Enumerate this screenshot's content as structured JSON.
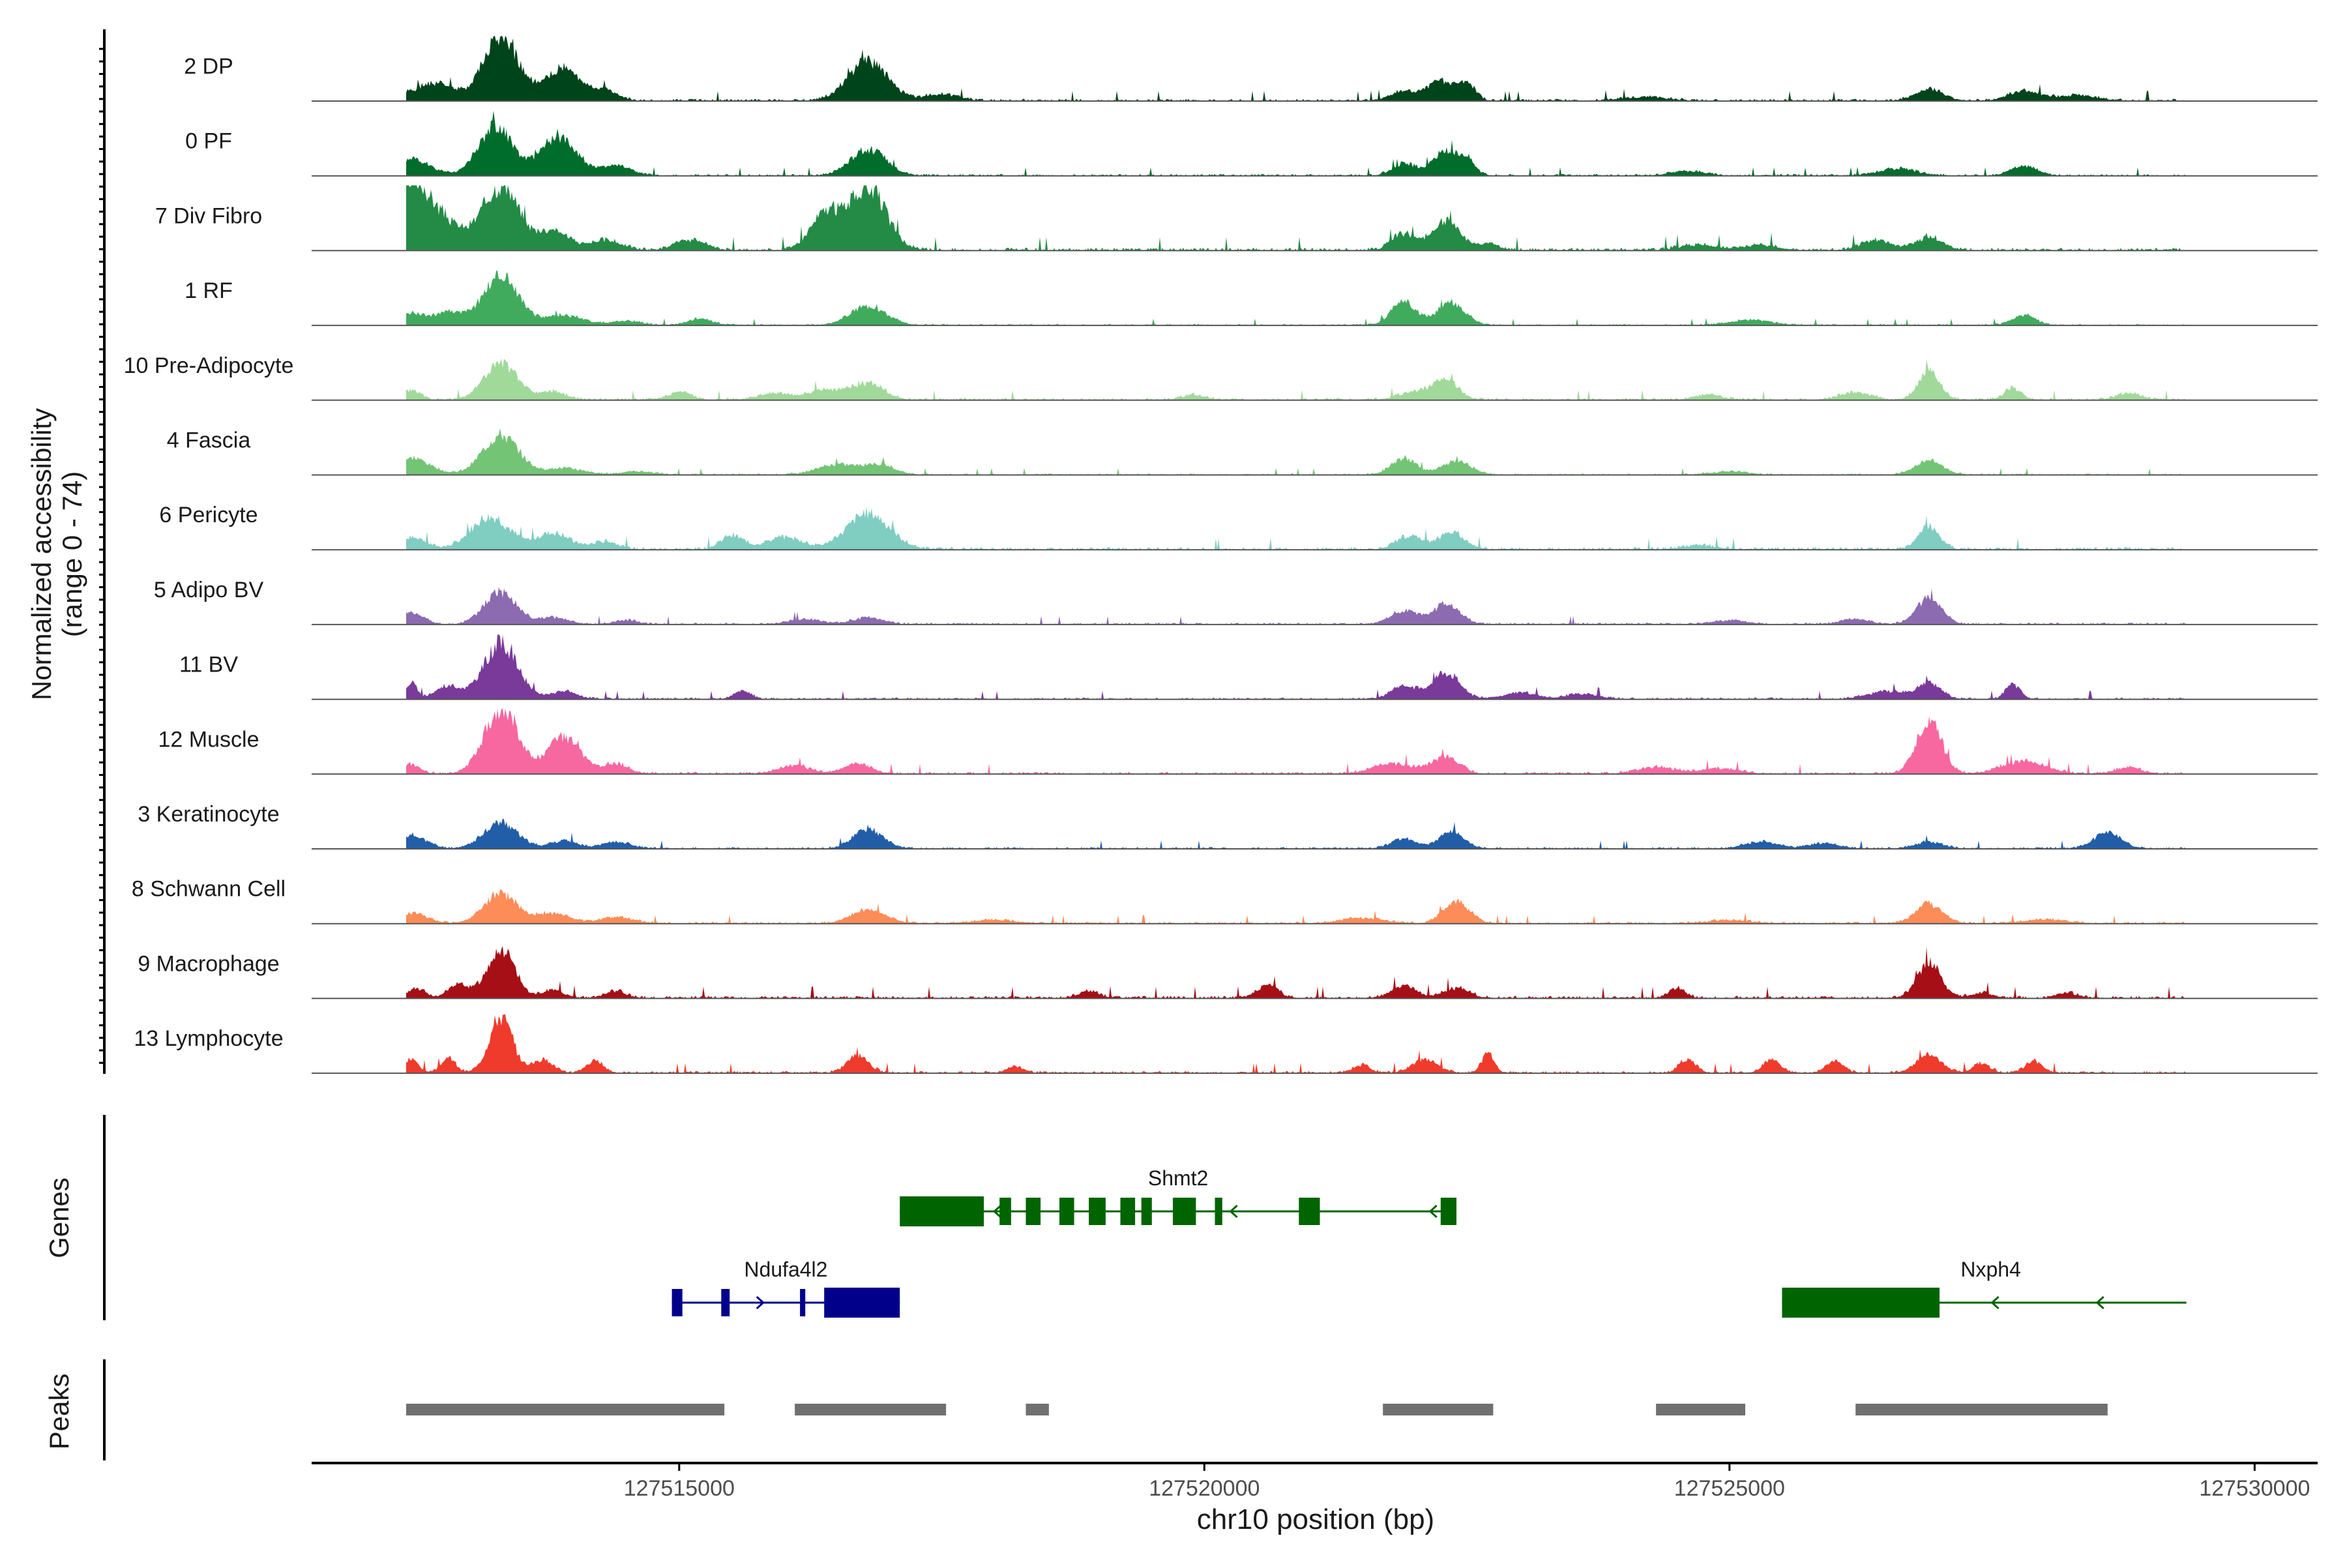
{
  "figure": {
    "ylabel_line1": "Normalized accessibility",
    "ylabel_line2": "(range 0 - 74)",
    "genes_label": "Genes",
    "peaks_label": "Peaks",
    "xlabel": "chr10 position (bp)"
  },
  "chart_data": {
    "type": "area",
    "xlabel": "chr10 position (bp)",
    "ylabel": "Normalized accessibility (range 0 - 74)",
    "xlim": [
      127511500,
      127530600
    ],
    "ylim": [
      0,
      74
    ],
    "xticks": [
      127515000,
      127520000,
      127525000,
      127530000
    ],
    "xtick_labels": [
      "127515000",
      "127520000",
      "127525000",
      "127530000"
    ],
    "data_start": 127512400,
    "data_end": 127529350,
    "tracks": [
      {
        "name": "2 DP",
        "color": "#00441b",
        "peaks": [
          [
            127512400,
            250,
            0.1
          ],
          [
            127512700,
            150,
            0.22
          ],
          [
            127513300,
            170,
            1.0
          ],
          [
            127513900,
            160,
            0.5
          ],
          [
            127514300,
            120,
            0.15
          ],
          [
            127516800,
            190,
            0.6
          ],
          [
            127517500,
            150,
            0.1
          ],
          [
            127521900,
            120,
            0.15
          ],
          [
            127522250,
            130,
            0.3
          ],
          [
            127522500,
            80,
            0.25
          ],
          [
            127524200,
            200,
            0.06
          ],
          [
            127526900,
            130,
            0.18
          ],
          [
            127527800,
            150,
            0.14
          ],
          [
            127528300,
            200,
            0.08
          ]
        ],
        "noise": 0.06
      },
      {
        "name": "0 PF",
        "color": "#006d2c",
        "peaks": [
          [
            127512450,
            180,
            0.25
          ],
          [
            127513250,
            160,
            0.75
          ],
          [
            127513850,
            170,
            0.6
          ],
          [
            127514400,
            140,
            0.15
          ],
          [
            127516800,
            170,
            0.4
          ],
          [
            127521900,
            110,
            0.18
          ],
          [
            127522300,
            130,
            0.35
          ],
          [
            127522500,
            80,
            0.2
          ],
          [
            127524600,
            160,
            0.07
          ],
          [
            127526600,
            180,
            0.1
          ],
          [
            127527800,
            120,
            0.15
          ]
        ],
        "noise": 0.05
      },
      {
        "name": "7 Div Fibro",
        "color": "#238b45",
        "peaks": [
          [
            127512450,
            140,
            0.8
          ],
          [
            127512700,
            200,
            0.5
          ],
          [
            127513300,
            170,
            1.0
          ],
          [
            127513800,
            150,
            0.3
          ],
          [
            127514300,
            150,
            0.15
          ],
          [
            127515100,
            140,
            0.15
          ],
          [
            127516400,
            150,
            0.55
          ],
          [
            127516800,
            170,
            0.95
          ],
          [
            127521900,
            110,
            0.25
          ],
          [
            127522300,
            130,
            0.45
          ],
          [
            127522700,
            100,
            0.1
          ],
          [
            127524700,
            180,
            0.08
          ],
          [
            127525300,
            150,
            0.08
          ],
          [
            127526400,
            140,
            0.15
          ],
          [
            127526900,
            130,
            0.2
          ]
        ],
        "noise": 0.08
      },
      {
        "name": "1 RF",
        "color": "#41ab5d",
        "peaks": [
          [
            127512450,
            130,
            0.18
          ],
          [
            127512800,
            130,
            0.2
          ],
          [
            127513300,
            170,
            0.75
          ],
          [
            127513900,
            180,
            0.15
          ],
          [
            127514500,
            150,
            0.06
          ],
          [
            127515200,
            110,
            0.1
          ],
          [
            127516800,
            170,
            0.3
          ],
          [
            127521900,
            120,
            0.35
          ],
          [
            127522350,
            130,
            0.35
          ],
          [
            127525200,
            200,
            0.08
          ],
          [
            127527800,
            110,
            0.15
          ]
        ],
        "noise": 0.04
      },
      {
        "name": "10 Pre-Adipocyte",
        "color": "#a1d99b",
        "peaks": [
          [
            127512450,
            80,
            0.15
          ],
          [
            127513300,
            160,
            0.55
          ],
          [
            127513800,
            120,
            0.12
          ],
          [
            127515000,
            110,
            0.12
          ],
          [
            127515900,
            150,
            0.1
          ],
          [
            127516400,
            170,
            0.15
          ],
          [
            127516800,
            150,
            0.25
          ],
          [
            127519900,
            120,
            0.07
          ],
          [
            127522000,
            150,
            0.12
          ],
          [
            127522300,
            120,
            0.3
          ],
          [
            127524800,
            130,
            0.08
          ],
          [
            127526200,
            140,
            0.12
          ],
          [
            127526900,
            100,
            0.45
          ],
          [
            127527700,
            80,
            0.18
          ],
          [
            127528800,
            120,
            0.1
          ]
        ],
        "noise": 0.06
      },
      {
        "name": "4 Fascia",
        "color": "#74c476",
        "peaks": [
          [
            127512450,
            180,
            0.25
          ],
          [
            127513300,
            170,
            0.6
          ],
          [
            127513900,
            180,
            0.1
          ],
          [
            127514600,
            160,
            0.05
          ],
          [
            127516500,
            190,
            0.15
          ],
          [
            127516900,
            150,
            0.15
          ],
          [
            127521900,
            120,
            0.25
          ],
          [
            127522400,
            140,
            0.2
          ],
          [
            127525000,
            180,
            0.05
          ],
          [
            127526900,
            130,
            0.22
          ]
        ],
        "noise": 0.04
      },
      {
        "name": "6 Pericyte",
        "color": "#80cdc1",
        "peaks": [
          [
            127512450,
            140,
            0.18
          ],
          [
            127513200,
            180,
            0.5
          ],
          [
            127513800,
            160,
            0.25
          ],
          [
            127514300,
            120,
            0.12
          ],
          [
            127515500,
            110,
            0.2
          ],
          [
            127516000,
            180,
            0.18
          ],
          [
            127516800,
            200,
            0.55
          ],
          [
            127521950,
            120,
            0.2
          ],
          [
            127522350,
            130,
            0.25
          ],
          [
            127524700,
            150,
            0.06
          ],
          [
            127526900,
            100,
            0.35
          ]
        ],
        "noise": 0.07
      },
      {
        "name": "5 Adipo BV",
        "color": "#8c6bb1",
        "peaks": [
          [
            127512450,
            110,
            0.18
          ],
          [
            127513300,
            150,
            0.5
          ],
          [
            127513800,
            130,
            0.1
          ],
          [
            127514500,
            120,
            0.06
          ],
          [
            127516200,
            150,
            0.08
          ],
          [
            127516800,
            140,
            0.1
          ],
          [
            127521900,
            130,
            0.2
          ],
          [
            127522300,
            130,
            0.3
          ],
          [
            127525000,
            150,
            0.06
          ],
          [
            127526200,
            130,
            0.08
          ],
          [
            127526900,
            120,
            0.4
          ]
        ],
        "noise": 0.05
      },
      {
        "name": "11 BV",
        "color": "#7a3a9a",
        "peaks": [
          [
            127512450,
            50,
            0.25
          ],
          [
            127512800,
            120,
            0.2
          ],
          [
            127513300,
            160,
            0.85
          ],
          [
            127513900,
            120,
            0.12
          ],
          [
            127515600,
            80,
            0.12
          ],
          [
            127521900,
            120,
            0.2
          ],
          [
            127522300,
            130,
            0.4
          ],
          [
            127523000,
            150,
            0.1
          ],
          [
            127523600,
            150,
            0.08
          ],
          [
            127526500,
            180,
            0.12
          ],
          [
            127526900,
            110,
            0.25
          ],
          [
            127527700,
            70,
            0.22
          ]
        ],
        "noise": 0.05
      },
      {
        "name": "12 Muscle",
        "color": "#f768a1",
        "peaks": [
          [
            127512450,
            80,
            0.15
          ],
          [
            127513300,
            160,
            1.0
          ],
          [
            127513900,
            160,
            0.55
          ],
          [
            127514400,
            120,
            0.15
          ],
          [
            127516100,
            150,
            0.12
          ],
          [
            127516700,
            130,
            0.15
          ],
          [
            127521800,
            200,
            0.15
          ],
          [
            127522300,
            130,
            0.25
          ],
          [
            127524300,
            180,
            0.1
          ],
          [
            127524900,
            180,
            0.08
          ],
          [
            127526900,
            120,
            0.8
          ],
          [
            127527800,
            200,
            0.2
          ],
          [
            127528800,
            120,
            0.1
          ]
        ],
        "noise": 0.06
      },
      {
        "name": "3 Keratinocyte",
        "color": "#225ea8",
        "peaks": [
          [
            127512450,
            140,
            0.2
          ],
          [
            127513300,
            160,
            0.4
          ],
          [
            127513900,
            130,
            0.12
          ],
          [
            127514400,
            140,
            0.1
          ],
          [
            127516800,
            140,
            0.3
          ],
          [
            127521900,
            120,
            0.15
          ],
          [
            127522350,
            120,
            0.25
          ],
          [
            127525300,
            160,
            0.1
          ],
          [
            127525900,
            140,
            0.08
          ],
          [
            127526900,
            130,
            0.1
          ],
          [
            127528600,
            130,
            0.25
          ]
        ],
        "noise": 0.05
      },
      {
        "name": "8 Schwann Cell",
        "color": "#fc8d59",
        "peaks": [
          [
            127512450,
            150,
            0.15
          ],
          [
            127513300,
            160,
            0.45
          ],
          [
            127513800,
            160,
            0.15
          ],
          [
            127514400,
            150,
            0.1
          ],
          [
            127516800,
            160,
            0.2
          ],
          [
            127518000,
            200,
            0.05
          ],
          [
            127521500,
            200,
            0.08
          ],
          [
            127522400,
            120,
            0.35
          ],
          [
            127525000,
            200,
            0.05
          ],
          [
            127526900,
            130,
            0.3
          ],
          [
            127528000,
            200,
            0.06
          ]
        ],
        "noise": 0.05
      },
      {
        "name": "9 Macrophage",
        "color": "#a50f15",
        "peaks": [
          [
            127512500,
            80,
            0.15
          ],
          [
            127512900,
            100,
            0.2
          ],
          [
            127513300,
            130,
            0.75
          ],
          [
            127513800,
            100,
            0.12
          ],
          [
            127514400,
            100,
            0.1
          ],
          [
            127518900,
            100,
            0.1
          ],
          [
            127520600,
            100,
            0.2
          ],
          [
            127521900,
            120,
            0.18
          ],
          [
            127522400,
            120,
            0.15
          ],
          [
            127524500,
            80,
            0.15
          ],
          [
            127526900,
            110,
            0.55
          ],
          [
            127527400,
            100,
            0.08
          ],
          [
            127528200,
            100,
            0.08
          ]
        ],
        "noise": 0.07
      },
      {
        "name": "13 Lymphocyte",
        "color": "#ef3b2c",
        "peaks": [
          [
            127512450,
            70,
            0.2
          ],
          [
            127512800,
            70,
            0.22
          ],
          [
            127513300,
            110,
            0.85
          ],
          [
            127513700,
            100,
            0.2
          ],
          [
            127514200,
            80,
            0.18
          ],
          [
            127516700,
            100,
            0.28
          ],
          [
            127518200,
            80,
            0.1
          ],
          [
            127521500,
            80,
            0.12
          ],
          [
            127522100,
            120,
            0.2
          ],
          [
            127522700,
            60,
            0.3
          ],
          [
            127524600,
            80,
            0.2
          ],
          [
            127525400,
            80,
            0.22
          ],
          [
            127526000,
            80,
            0.18
          ],
          [
            127526900,
            120,
            0.28
          ],
          [
            127527400,
            80,
            0.15
          ],
          [
            127527900,
            80,
            0.18
          ]
        ],
        "noise": 0.06
      }
    ],
    "genes": [
      {
        "name": "Shmt2",
        "strand": "-",
        "color": "#006400",
        "start": 127517100,
        "end": 127522400,
        "row": 0,
        "exons": [
          [
            127517100,
            127517900
          ],
          [
            127518050,
            127518160
          ],
          [
            127518300,
            127518440
          ],
          [
            127518620,
            127518760
          ],
          [
            127518900,
            127519060
          ],
          [
            127519200,
            127519340
          ],
          [
            127519400,
            127519500
          ],
          [
            127519700,
            127519920
          ],
          [
            127520100,
            127520170
          ],
          [
            127520900,
            127521100
          ],
          [
            127522250,
            127522400
          ]
        ],
        "arrows": [
          127518000,
          127520250,
          127522150
        ]
      },
      {
        "name": "Ndufa4l2",
        "strand": "+",
        "color": "#00008b",
        "start": 127514930,
        "end": 127517100,
        "row": 1,
        "exons": [
          [
            127514930,
            127515030
          ],
          [
            127515400,
            127515480
          ],
          [
            127516150,
            127516200
          ],
          [
            127516380,
            127517100
          ]
        ],
        "arrows": [
          127515800
        ]
      },
      {
        "name": "Nxph4",
        "strand": "-",
        "color": "#006400",
        "start": 127525500,
        "end": 127529350,
        "row": 1,
        "exons": [
          [
            127525500,
            127527000
          ]
        ],
        "arrows": [
          127527500,
          127528500
        ]
      }
    ],
    "peaks": [
      [
        127512400,
        127515430
      ],
      [
        127516100,
        127517540
      ],
      [
        127518300,
        127518520
      ],
      [
        127521700,
        127522750
      ],
      [
        127524300,
        127525150
      ],
      [
        127526200,
        127528600
      ]
    ]
  }
}
